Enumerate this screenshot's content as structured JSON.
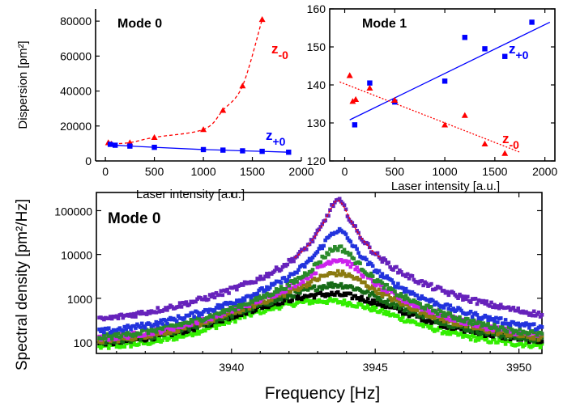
{
  "chart_data": [
    {
      "type": "scatter",
      "title": "Mode 0",
      "xlabel": "Laser intensity [a.u.]",
      "ylabel": "Dispersion [pm²]",
      "xlim": [
        -100,
        2000
      ],
      "ylim": [
        0,
        87000
      ],
      "xticks": [
        "0",
        "500",
        "1000",
        "1500",
        "2000"
      ],
      "yticks": [
        "0",
        "20000",
        "40000",
        "60000",
        "80000"
      ],
      "series": [
        {
          "name": "z-0",
          "label_main": "z",
          "label_sub": "-0",
          "color": "#ff0000",
          "marker": "triangle",
          "line": "dashed-curve",
          "x": [
            30,
            60,
            250,
            500,
            1000,
            1200,
            1400,
            1600
          ],
          "y": [
            10500,
            9800,
            10500,
            13500,
            18000,
            29000,
            43000,
            81000
          ]
        },
        {
          "name": "z+0",
          "label_main": "z",
          "label_sub": "+0",
          "color": "#0000ff",
          "marker": "square",
          "line": "solid",
          "x": [
            50,
            100,
            250,
            500,
            1000,
            1200,
            1400,
            1600,
            1870
          ],
          "y": [
            9500,
            9000,
            8500,
            7800,
            6500,
            6200,
            5800,
            5500,
            5000
          ]
        }
      ]
    },
    {
      "type": "scatter",
      "title": "Mode 1",
      "xlabel": "Laser intensity [a.u.]",
      "ylabel": "",
      "xlim": [
        -150,
        2100
      ],
      "ylim": [
        120,
        160
      ],
      "xticks": [
        "0",
        "500",
        "1000",
        "1500",
        "2000"
      ],
      "yticks": [
        "120",
        "130",
        "140",
        "150",
        "160"
      ],
      "series": [
        {
          "name": "z+0",
          "label_main": "z",
          "label_sub": "+0",
          "color": "#0000ff",
          "marker": "square",
          "fit": [
            [
              50,
              130.8
            ],
            [
              2050,
              156.5
            ]
          ],
          "x": [
            100,
            250,
            500,
            1000,
            1200,
            1400,
            1600,
            1870
          ],
          "y": [
            129.5,
            140.5,
            135.5,
            141,
            152.5,
            149.5,
            147.5,
            156.5
          ]
        },
        {
          "name": "z-0",
          "label_main": "z",
          "label_sub": "-0",
          "color": "#ff0000",
          "marker": "triangle",
          "fit": [
            [
              -50,
              140.8
            ],
            [
              1750,
              122.3
            ]
          ],
          "x": [
            50,
            80,
            110,
            250,
            500,
            1000,
            1200,
            1400,
            1600
          ],
          "y": [
            142.5,
            135.7,
            136.2,
            139.2,
            136,
            129.5,
            132,
            124.5,
            122
          ]
        }
      ]
    },
    {
      "type": "scatter",
      "title": "Mode 0",
      "xlabel": "Frequency [Hz]",
      "ylabel": "Spectral density [pm²/Hz]",
      "xlim": [
        3935.3,
        3950.8
      ],
      "ylim": [
        55,
        260000
      ],
      "yscale": "log",
      "xticks": [
        "3940",
        "3945",
        "3950"
      ],
      "yticks": [
        "100",
        "1000",
        "10000",
        "100000"
      ],
      "peak_frequency": 3943.7,
      "series": [
        {
          "color": "#33ee00",
          "peak": 620,
          "width": 2.2
        },
        {
          "color": "#000000",
          "peak": 1000,
          "width": 2.0
        },
        {
          "color": "#156a15",
          "peak": 1800,
          "width": 1.4
        },
        {
          "color": "#8a7a10",
          "peak": 3500,
          "width": 1.05
        },
        {
          "color": "#cc22ee",
          "peak": 7500,
          "width": 0.78
        },
        {
          "color": "#2a8a2a",
          "peak": 14000,
          "width": 0.6
        },
        {
          "color": "#2233dd",
          "peak": 35000,
          "width": 0.48
        },
        {
          "color": "#6622bb",
          "peak": 170000,
          "width": 0.33
        }
      ],
      "fit_color": "#ff0000"
    }
  ]
}
